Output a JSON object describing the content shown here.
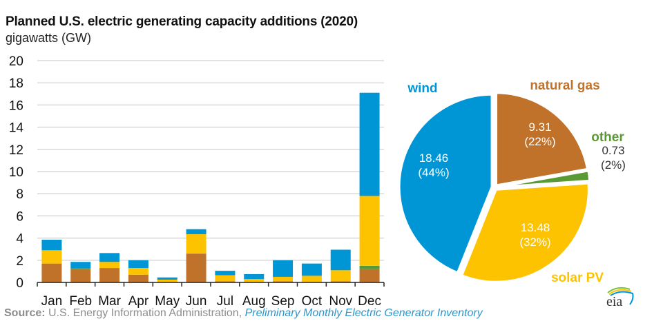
{
  "title": "Planned U.S. electric generating capacity additions (2020)",
  "subtitle": "gigawatts (GW)",
  "source": {
    "label": "Source:",
    "text": " U.S. Energy Information Administration, ",
    "link": "Preliminary Monthly Electric Generator Inventory"
  },
  "logo": {
    "text": "eia",
    "icon": "eia-logo-icon"
  },
  "colors": {
    "natural_gas": "#c0722a",
    "other": "#5a9a35",
    "solar": "#fdc300",
    "wind": "#0096d6",
    "grid": "#d9d9d9",
    "axis": "#222222"
  },
  "chart_data": [
    {
      "type": "bar",
      "stacked": true,
      "title": "Planned U.S. electric generating capacity additions (2020)",
      "ylabel": "gigawatts (GW)",
      "xlabel": "",
      "ylim": [
        0,
        20
      ],
      "yticks": [
        0,
        2,
        4,
        6,
        8,
        10,
        12,
        14,
        16,
        18,
        20
      ],
      "grid": true,
      "categories": [
        "Jan",
        "Feb",
        "Mar",
        "Apr",
        "May",
        "Jun",
        "Jul",
        "Aug",
        "Sep",
        "Oct",
        "Nov",
        "Dec"
      ],
      "series": [
        {
          "name": "natural gas",
          "color_key": "natural_gas",
          "values": [
            1.7,
            1.2,
            1.3,
            0.7,
            0.05,
            2.6,
            0.1,
            0.05,
            0.1,
            0.05,
            0.1,
            1.2
          ]
        },
        {
          "name": "other",
          "color_key": "other",
          "values": [
            0,
            0.05,
            0,
            0,
            0,
            0,
            0,
            0,
            0,
            0,
            0,
            0.3
          ]
        },
        {
          "name": "solar PV",
          "color_key": "solar",
          "values": [
            1.2,
            0,
            0.55,
            0.6,
            0.2,
            1.75,
            0.55,
            0.25,
            0.4,
            0.55,
            1.0,
            6.3
          ]
        },
        {
          "name": "wind",
          "color_key": "wind",
          "values": [
            0.95,
            0.6,
            0.8,
            0.7,
            0.2,
            0.45,
            0.4,
            0.45,
            1.5,
            1.1,
            1.85,
            9.3
          ]
        }
      ]
    },
    {
      "type": "pie",
      "start": "top",
      "direction": "clockwise",
      "slices": [
        {
          "name": "natural gas",
          "color_key": "natural_gas",
          "value": 9.31,
          "value_label": "9.31",
          "pct_label": "(22%)"
        },
        {
          "name": "other",
          "color_key": "other",
          "value": 0.73,
          "value_label": "0.73",
          "pct_label": "(2%)"
        },
        {
          "name": "solar PV",
          "color_key": "solar",
          "value": 13.48,
          "value_label": "13.48",
          "pct_label": "(32%)"
        },
        {
          "name": "wind",
          "color_key": "wind",
          "value": 18.46,
          "value_label": "18.46",
          "pct_label": "(44%)"
        }
      ]
    }
  ]
}
